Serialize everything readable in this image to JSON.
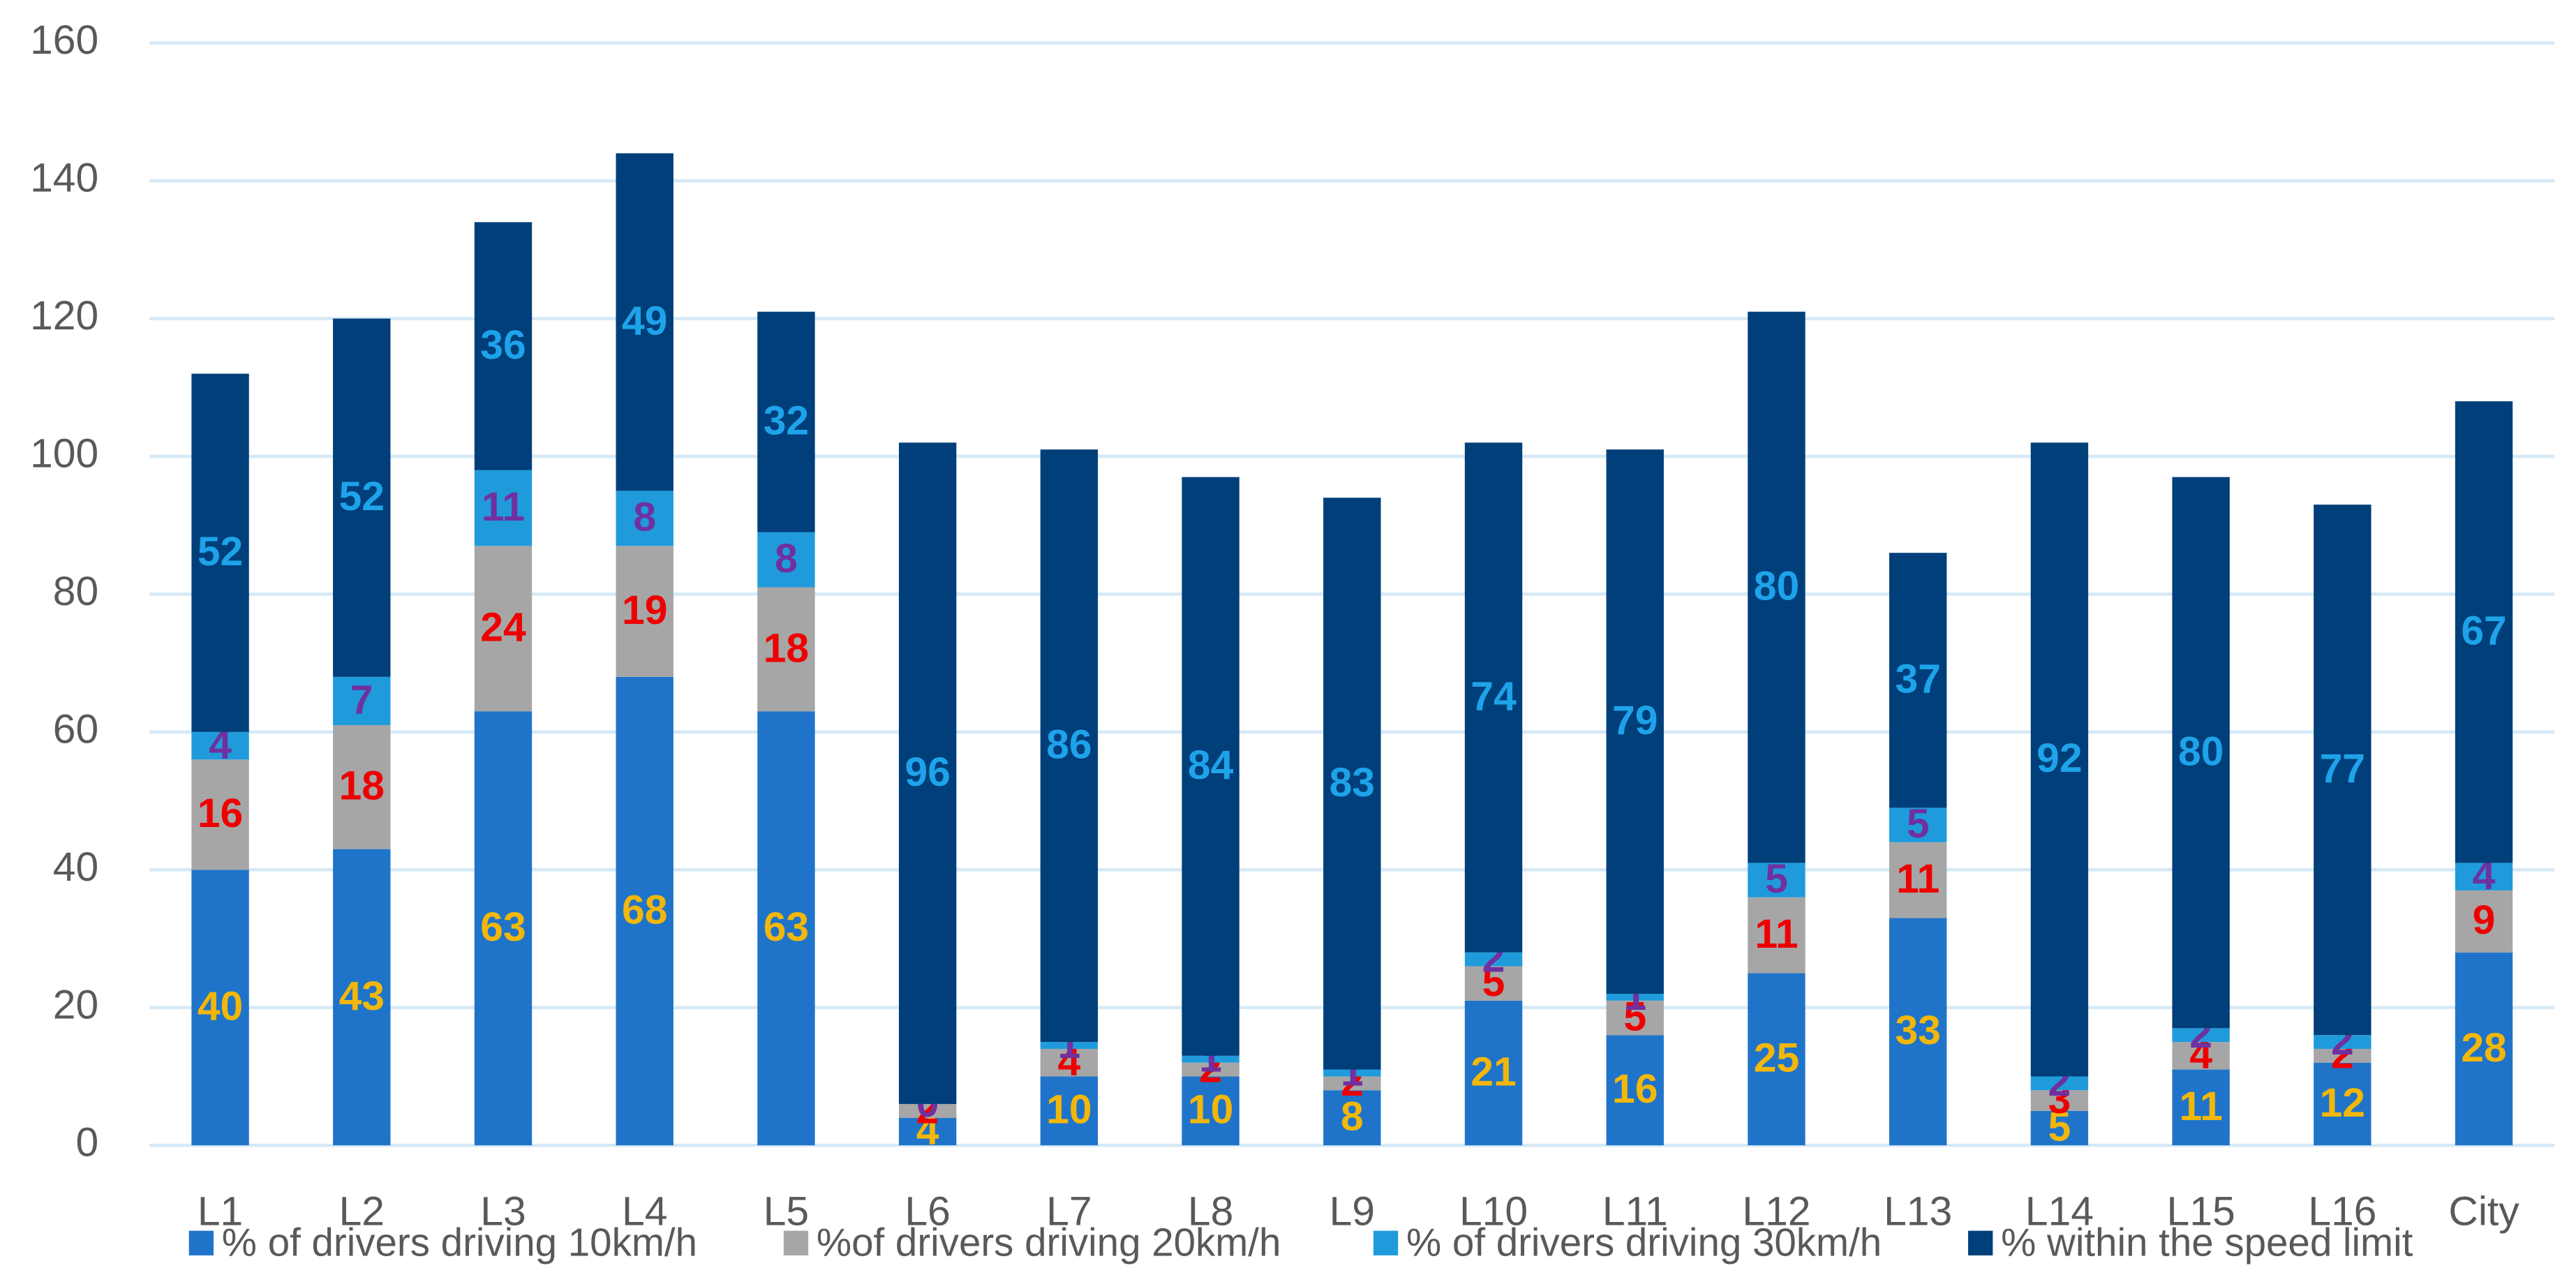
{
  "chart_data": {
    "type": "stacked_bar",
    "categories": [
      "L1",
      "L2",
      "L3",
      "L4",
      "L5",
      "L6",
      "L7",
      "L8",
      "L9",
      "L10",
      "L11",
      "L12",
      "L13",
      "L14",
      "L15",
      "L16",
      "City"
    ],
    "series": [
      {
        "name": "% of drivers driving 10km/h",
        "color": "#1f74c9",
        "label_color": "#f2b70a",
        "values": [
          40,
          43,
          63,
          68,
          63,
          4,
          10,
          10,
          8,
          21,
          16,
          25,
          33,
          5,
          11,
          12,
          28
        ]
      },
      {
        "name": "%of drivers driving 20km/h",
        "color": "#a6a6a6",
        "label_color": "#ee0000",
        "values": [
          16,
          18,
          24,
          19,
          18,
          2,
          4,
          2,
          2,
          5,
          5,
          11,
          11,
          3,
          4,
          2,
          9
        ]
      },
      {
        "name": "% of drivers driving 30km/h",
        "color": "#1f9bdc",
        "label_color": "#7030a0",
        "values": [
          4,
          7,
          11,
          8,
          8,
          0,
          1,
          1,
          1,
          2,
          1,
          5,
          5,
          2,
          2,
          2,
          4
        ]
      },
      {
        "name": "% within the speed limit",
        "color": "#003f7a",
        "label_color": "#1ea3ea",
        "values": [
          52,
          52,
          36,
          49,
          32,
          96,
          86,
          84,
          83,
          74,
          79,
          80,
          37,
          92,
          80,
          77,
          67
        ]
      }
    ],
    "ylim": [
      0,
      160
    ],
    "yticks": [
      0,
      20,
      40,
      60,
      80,
      100,
      120,
      140,
      160
    ],
    "grid": true,
    "legend": "bottom"
  }
}
